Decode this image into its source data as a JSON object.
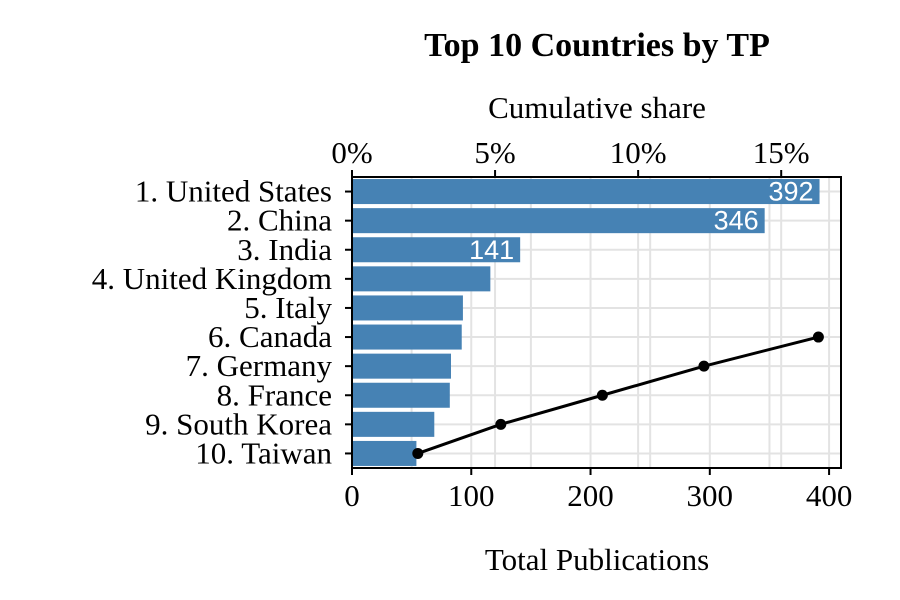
{
  "chart_data": {
    "type": "bar",
    "orientation": "horizontal",
    "title": "Top 10 Countries by TP",
    "xlabel": "Total Publications",
    "top_axis_label": "Cumulative share",
    "categories": [
      "1. United States",
      "2. China",
      "3. India",
      "4. United Kingdom",
      "5. Italy",
      "6. Canada",
      "7. Germany",
      "8. France",
      "9. South Korea",
      "10. Taiwan"
    ],
    "values": [
      392,
      346,
      141,
      116,
      93,
      92,
      83,
      82,
      69,
      54
    ],
    "data_labels": [
      "392",
      "346",
      "141",
      "",
      "",
      "",
      "",
      "",
      "",
      ""
    ],
    "xlim": [
      0,
      410
    ],
    "x_ticks": [
      0,
      100,
      200,
      300,
      400
    ],
    "top_ticks": [
      {
        "label": "0%",
        "share": 0
      },
      {
        "label": "5%",
        "share": 5
      },
      {
        "label": "10%",
        "share": 10
      },
      {
        "label": "15%",
        "share": 15
      }
    ],
    "share_axis_max": 17.09,
    "line_series": {
      "categories": [
        "6. Canada",
        "7. Germany",
        "8. France",
        "9. South Korea",
        "10. Taiwan"
      ],
      "cumulative_share_values": [
        16.3,
        12.3,
        8.75,
        5.2,
        2.3
      ]
    },
    "grid": true,
    "bar_color": "#4682b4",
    "line_color": "#000000"
  }
}
